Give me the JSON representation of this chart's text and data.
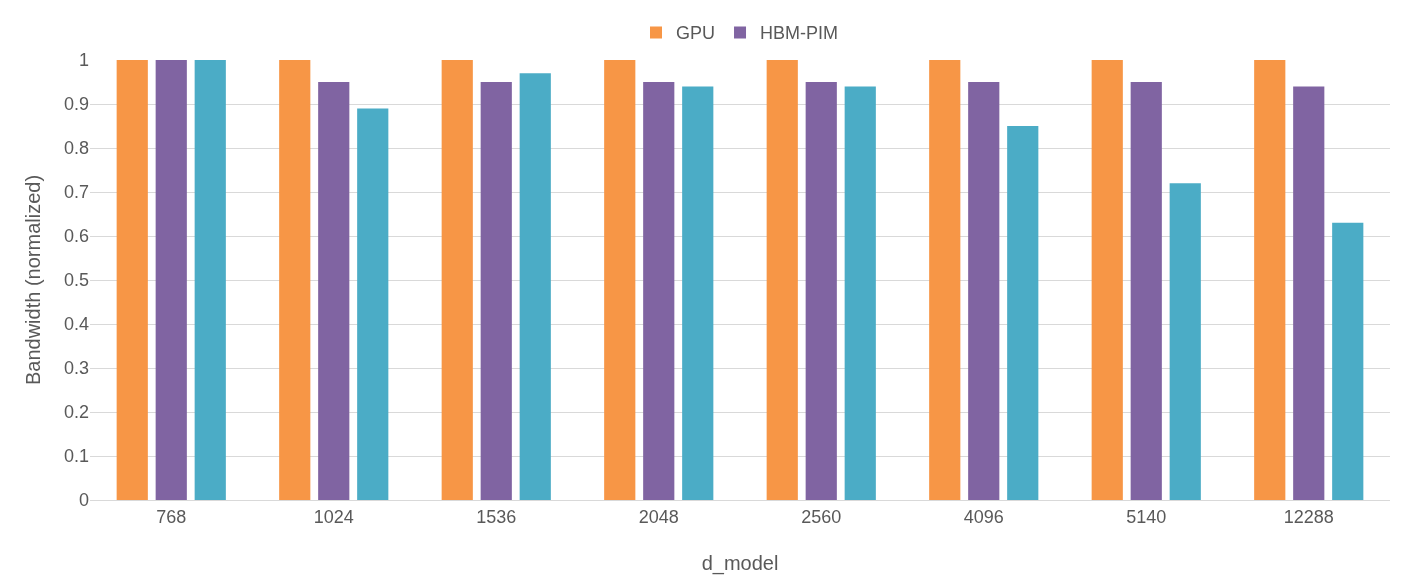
{
  "chart_data": {
    "type": "bar",
    "xlabel": "d_model",
    "ylabel": "Bandwidth (normalized)",
    "categories": [
      "768",
      "1024",
      "1536",
      "2048",
      "2560",
      "4096",
      "5140",
      "12288"
    ],
    "series": [
      {
        "name": "GPU",
        "color": "#f79646",
        "values": [
          1,
          1,
          1,
          1,
          1,
          1,
          1,
          1
        ]
      },
      {
        "name": "HBM-PIM",
        "color": "#8064a2",
        "values": [
          1.0,
          0.95,
          0.95,
          0.95,
          0.95,
          0.95,
          0.95,
          0.94
        ]
      },
      {
        "color": "#4bacc6",
        "values": [
          1.0,
          0.89,
          0.97,
          0.94,
          0.94,
          0.85,
          0.72,
          0.63
        ]
      }
    ],
    "ylim": [
      0,
      1
    ],
    "yticks": [
      0,
      0.1,
      0.2,
      0.3,
      0.4,
      0.5,
      0.6,
      0.7,
      0.8,
      0.9,
      1
    ],
    "grid": "y",
    "legend": "top"
  }
}
